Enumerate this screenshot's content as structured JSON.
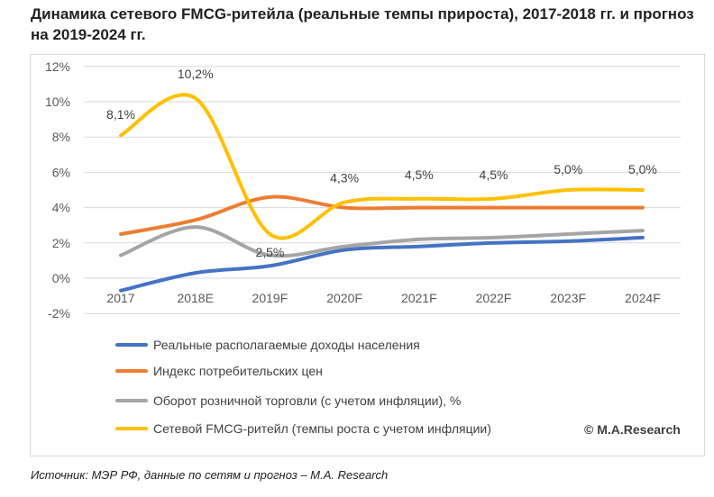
{
  "title": "Динамика сетевого FMCG-ритейла (реальные темпы прироста), 2017-2018 гг. и прогноз на 2019-2024 гг.",
  "source": "Источник: МЭР РФ, данные по сетям и прогноз – M.A. Research",
  "copyright": "© M.A.Research",
  "chart_data": {
    "type": "line",
    "categories": [
      "2017",
      "2018E",
      "2019F",
      "2020F",
      "2021F",
      "2022F",
      "2023F",
      "2024F"
    ],
    "ylim": [
      -2,
      12
    ],
    "yticks": [
      -2,
      0,
      2,
      4,
      6,
      8,
      10,
      12
    ],
    "ytick_labels": [
      "-2%",
      "0%",
      "2%",
      "4%",
      "6%",
      "8%",
      "10%",
      "12%"
    ],
    "grid": true,
    "legend_position": "bottom",
    "series": [
      {
        "name": "Реальные располагаемые доходы населения",
        "color": "#4472C4",
        "values": [
          -0.7,
          0.3,
          0.7,
          1.6,
          1.8,
          2.0,
          2.1,
          2.3
        ]
      },
      {
        "name": "Индекс потребительских цен",
        "color": "#ED7D31",
        "values": [
          2.5,
          3.3,
          4.6,
          4.0,
          4.0,
          4.0,
          4.0,
          4.0
        ]
      },
      {
        "name": "Оборот розничной торговли (с учетом инфляции), %",
        "color": "#A5A5A5",
        "values": [
          1.3,
          2.9,
          1.3,
          1.8,
          2.2,
          2.3,
          2.5,
          2.7
        ]
      },
      {
        "name": "Сетевой FMCG-ритейл (темпы роста с учетом инфляции)",
        "color": "#FFC000",
        "values": [
          8.1,
          10.2,
          2.5,
          4.3,
          4.5,
          4.5,
          5.0,
          5.0
        ],
        "data_labels": [
          "8,1%",
          "10,2%",
          "2,5%",
          "4,3%",
          "4,5%",
          "4,5%",
          "5,0%",
          "5,0%"
        ]
      }
    ]
  }
}
